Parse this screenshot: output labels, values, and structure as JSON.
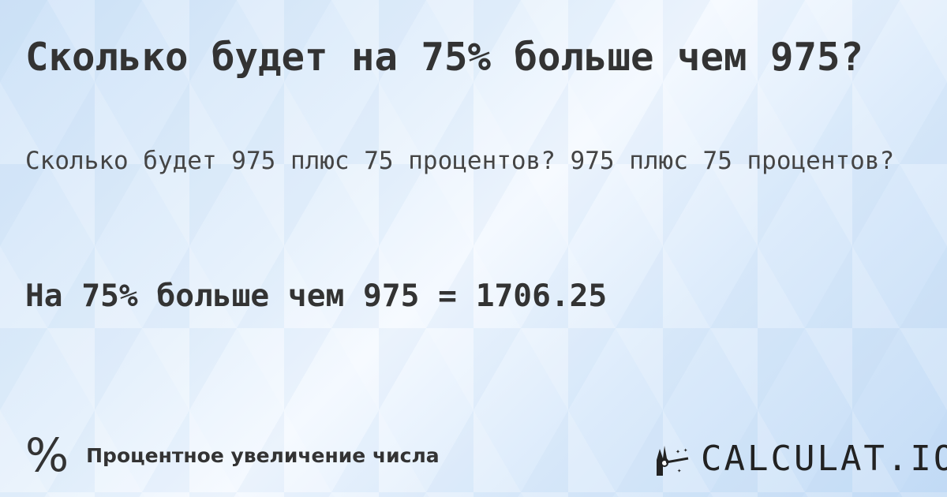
{
  "title": "Сколько будет на 75% больше чем 975?",
  "subtitle": "Сколько будет 975 плюс 75 процентов? 975 плюс 75 процентов?",
  "result": "На 75% больше чем 975 = 1706.25",
  "footer": {
    "icon": "percent-icon",
    "symbol": "%",
    "category": "Процентное увеличение числа"
  },
  "logo": {
    "text": "CALCULAT.IO",
    "icon": "magic-hand-wand-icon"
  }
}
